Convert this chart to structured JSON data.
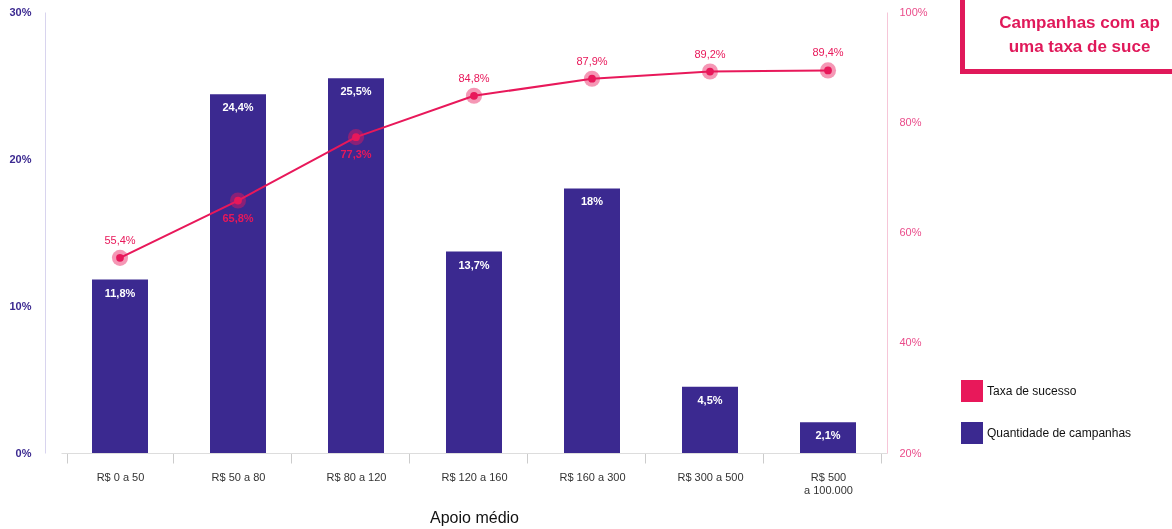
{
  "chart_data": {
    "type": "bar",
    "xlabel": "Apoio médio",
    "categories": [
      "R$ 0 a 50",
      "R$ 50 a 80",
      "R$ 80 a 120",
      "R$ 120 a 160",
      "R$ 160 a 300",
      "R$ 300 a 500",
      "R$ 500\na 100.000"
    ],
    "series": [
      {
        "name": "Quantidade de campanhas",
        "color": "#3b2990",
        "values": [
          11.8,
          24.4,
          25.5,
          13.7,
          18,
          4.5,
          2.1
        ],
        "value_labels": [
          "11,8%",
          "24,4%",
          "25,5%",
          "13,7%",
          "18%",
          "4,5%",
          "2,1%"
        ]
      },
      {
        "name": "Taxa de sucesso",
        "type": "line",
        "axis": "y2",
        "color": "#e8185a",
        "marker": "circle",
        "values": [
          55.4,
          65.8,
          77.3,
          84.8,
          87.9,
          89.2,
          89.4
        ],
        "value_labels": [
          "55,4%",
          "65,8%",
          "77,3%",
          "84,8%",
          "87,9%",
          "89,2%",
          "89,4%"
        ]
      }
    ],
    "ylim": [
      0,
      30
    ],
    "yticks": [
      {
        "value": 0,
        "label": "0%"
      },
      {
        "value": 10,
        "label": "10%"
      },
      {
        "value": 20,
        "label": "20%"
      },
      {
        "value": 30,
        "label": "30%"
      }
    ],
    "y2lim": [
      20,
      100
    ],
    "y2ticks": [
      {
        "value": 20,
        "label": "20%"
      },
      {
        "value": 40,
        "label": "40%"
      },
      {
        "value": 60,
        "label": "60%"
      },
      {
        "value": 80,
        "label": "80%"
      },
      {
        "value": 100,
        "label": "100%"
      }
    ],
    "legend": "right",
    "grid": false,
    "annotations": [
      "Campanhas com ap\numa taxa de suce"
    ]
  }
}
